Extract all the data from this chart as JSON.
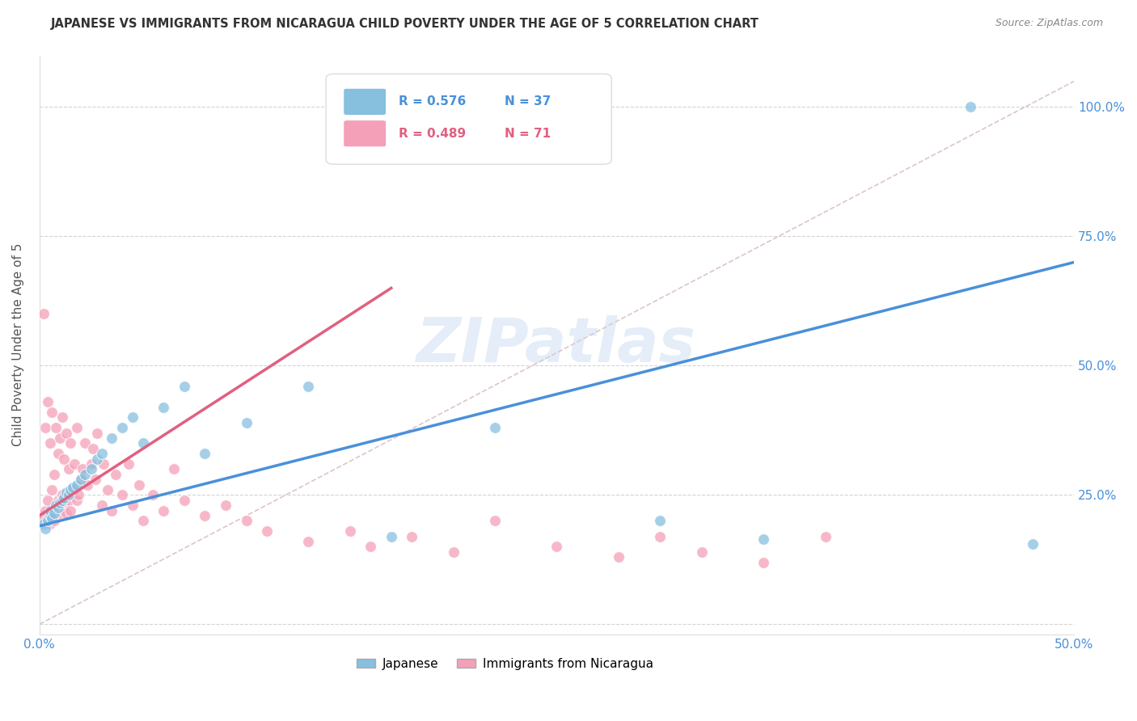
{
  "title": "JAPANESE VS IMMIGRANTS FROM NICARAGUA CHILD POVERTY UNDER THE AGE OF 5 CORRELATION CHART",
  "source": "Source: ZipAtlas.com",
  "ylabel": "Child Poverty Under the Age of 5",
  "xlim": [
    0.0,
    0.5
  ],
  "ylim": [
    -0.02,
    1.1
  ],
  "xticks": [
    0.0,
    0.1,
    0.2,
    0.3,
    0.4,
    0.5
  ],
  "xticklabels": [
    "0.0%",
    "",
    "",
    "",
    "",
    "50.0%"
  ],
  "yticks": [
    0.0,
    0.25,
    0.5,
    0.75,
    1.0
  ],
  "ytick_right_labels": [
    "",
    "25.0%",
    "50.0%",
    "75.0%",
    "100.0%"
  ],
  "background_color": "#ffffff",
  "grid_color": "#d0d0d0",
  "watermark_text": "ZIPatlas",
  "watermark_color": "#c5d8f0",
  "blue_scatter_color": "#87bfdf",
  "pink_scatter_color": "#f4a0b8",
  "blue_line_color": "#4a90d9",
  "pink_line_color": "#e06080",
  "diag_line_color": "#d4b8b8",
  "legend_border_color": "#dddddd",
  "blue_legend_text_color": "#4a90d9",
  "pink_legend_text_color": "#e06080",
  "title_color": "#333333",
  "source_color": "#888888",
  "ylabel_color": "#555555",
  "tick_label_color": "#4a90d9",
  "japanese_x": [
    0.002,
    0.003,
    0.004,
    0.005,
    0.005,
    0.006,
    0.007,
    0.008,
    0.009,
    0.01,
    0.011,
    0.012,
    0.013,
    0.014,
    0.015,
    0.016,
    0.018,
    0.02,
    0.022,
    0.025,
    0.028,
    0.03,
    0.035,
    0.04,
    0.045,
    0.05,
    0.06,
    0.07,
    0.08,
    0.1,
    0.13,
    0.17,
    0.22,
    0.3,
    0.35,
    0.45,
    0.48
  ],
  "japanese_y": [
    0.195,
    0.185,
    0.2,
    0.21,
    0.22,
    0.205,
    0.215,
    0.23,
    0.225,
    0.235,
    0.24,
    0.245,
    0.255,
    0.25,
    0.26,
    0.265,
    0.27,
    0.28,
    0.29,
    0.3,
    0.32,
    0.33,
    0.36,
    0.38,
    0.4,
    0.35,
    0.42,
    0.46,
    0.33,
    0.39,
    0.46,
    0.17,
    0.38,
    0.2,
    0.165,
    1.0,
    0.155
  ],
  "nicaragua_x": [
    0.001,
    0.002,
    0.003,
    0.003,
    0.004,
    0.004,
    0.005,
    0.005,
    0.006,
    0.006,
    0.007,
    0.007,
    0.008,
    0.008,
    0.009,
    0.009,
    0.01,
    0.01,
    0.011,
    0.011,
    0.012,
    0.012,
    0.013,
    0.013,
    0.014,
    0.014,
    0.015,
    0.015,
    0.016,
    0.017,
    0.018,
    0.018,
    0.019,
    0.02,
    0.021,
    0.022,
    0.023,
    0.025,
    0.026,
    0.027,
    0.028,
    0.03,
    0.031,
    0.033,
    0.035,
    0.037,
    0.04,
    0.043,
    0.045,
    0.048,
    0.05,
    0.055,
    0.06,
    0.065,
    0.07,
    0.08,
    0.09,
    0.1,
    0.11,
    0.13,
    0.15,
    0.16,
    0.18,
    0.2,
    0.22,
    0.25,
    0.28,
    0.3,
    0.32,
    0.35,
    0.38
  ],
  "nicaragua_y": [
    0.21,
    0.6,
    0.22,
    0.38,
    0.24,
    0.43,
    0.195,
    0.35,
    0.26,
    0.41,
    0.2,
    0.29,
    0.22,
    0.38,
    0.24,
    0.33,
    0.215,
    0.36,
    0.25,
    0.4,
    0.23,
    0.32,
    0.215,
    0.37,
    0.24,
    0.3,
    0.22,
    0.35,
    0.26,
    0.31,
    0.24,
    0.38,
    0.25,
    0.28,
    0.3,
    0.35,
    0.27,
    0.31,
    0.34,
    0.28,
    0.37,
    0.23,
    0.31,
    0.26,
    0.22,
    0.29,
    0.25,
    0.31,
    0.23,
    0.27,
    0.2,
    0.25,
    0.22,
    0.3,
    0.24,
    0.21,
    0.23,
    0.2,
    0.18,
    0.16,
    0.18,
    0.15,
    0.17,
    0.14,
    0.2,
    0.15,
    0.13,
    0.17,
    0.14,
    0.12,
    0.17
  ],
  "blue_line_x0": 0.0,
  "blue_line_x1": 0.5,
  "blue_line_y0": 0.19,
  "blue_line_y1": 0.7,
  "pink_line_x0": 0.0,
  "pink_line_x1": 0.17,
  "pink_line_y0": 0.21,
  "pink_line_y1": 0.65
}
